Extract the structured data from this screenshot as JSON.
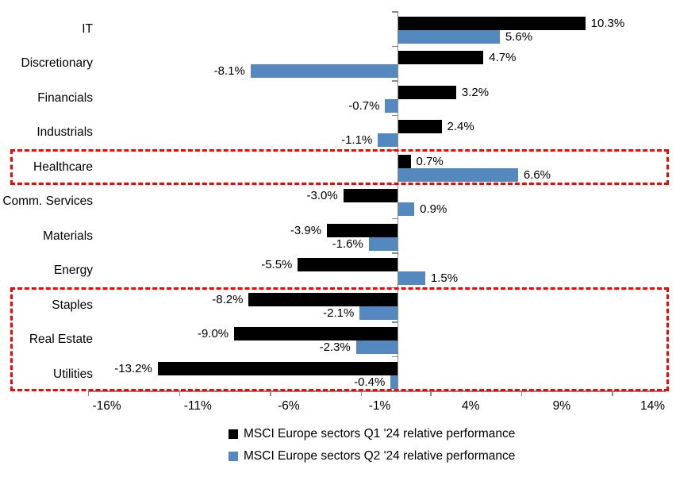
{
  "chart_data": {
    "type": "bar",
    "orientation": "horizontal",
    "title": "",
    "xlabel": "",
    "ylabel": "",
    "grid": false,
    "legend_position": "bottom",
    "categories": [
      "IT",
      "Discretionary",
      "Financials",
      "Industrials",
      "Healthcare",
      "Comm. Services",
      "Materials",
      "Energy",
      "Staples",
      "Real Estate",
      "Utilities"
    ],
    "series": [
      {
        "name": "MSCI Europe sectors Q1 '24 relative performance",
        "color": "#000000",
        "values": [
          10.3,
          4.7,
          3.2,
          2.4,
          0.7,
          -3.0,
          -3.9,
          -5.5,
          -8.2,
          -9.0,
          -13.2
        ],
        "labels": [
          "10.3%",
          "4.7%",
          "3.2%",
          "2.4%",
          "0.7%",
          "-3.0%",
          "-3.9%",
          "-5.5%",
          "-8.2%",
          "-9.0%",
          "-13.2%"
        ]
      },
      {
        "name": "MSCI Europe sectors Q2 '24 relative performance",
        "color": "#5389BE",
        "values": [
          5.6,
          -8.1,
          -0.7,
          -1.1,
          6.6,
          0.9,
          -1.6,
          1.5,
          -2.1,
          -2.3,
          -0.4
        ],
        "labels": [
          "5.6%",
          "-8.1%",
          "-0.7%",
          "-1.1%",
          "6.6%",
          "0.9%",
          "-1.6%",
          "1.5%",
          "-2.1%",
          "-2.3%",
          "-0.4%"
        ]
      }
    ],
    "x_axis": {
      "tick_labels": [
        "-16%",
        "-11%",
        "-6%",
        "-1%",
        "4%",
        "9%",
        "14%"
      ],
      "tick_values": [
        -16,
        -11,
        -6,
        -1,
        4,
        9,
        14
      ],
      "min": -17,
      "max": 14.8
    },
    "annotations": [
      {
        "id": "highlight-box-healthcare",
        "rows": [
          4
        ],
        "color": "#FF0000"
      },
      {
        "id": "highlight-box-defensives",
        "rows": [
          8,
          9,
          10
        ],
        "color": "#FF0000"
      }
    ],
    "colors": {
      "axis": "#8A8A8A",
      "q1_bar": "#000000",
      "q2_bar": "#5389BE",
      "highlight": "#FF0000"
    }
  }
}
